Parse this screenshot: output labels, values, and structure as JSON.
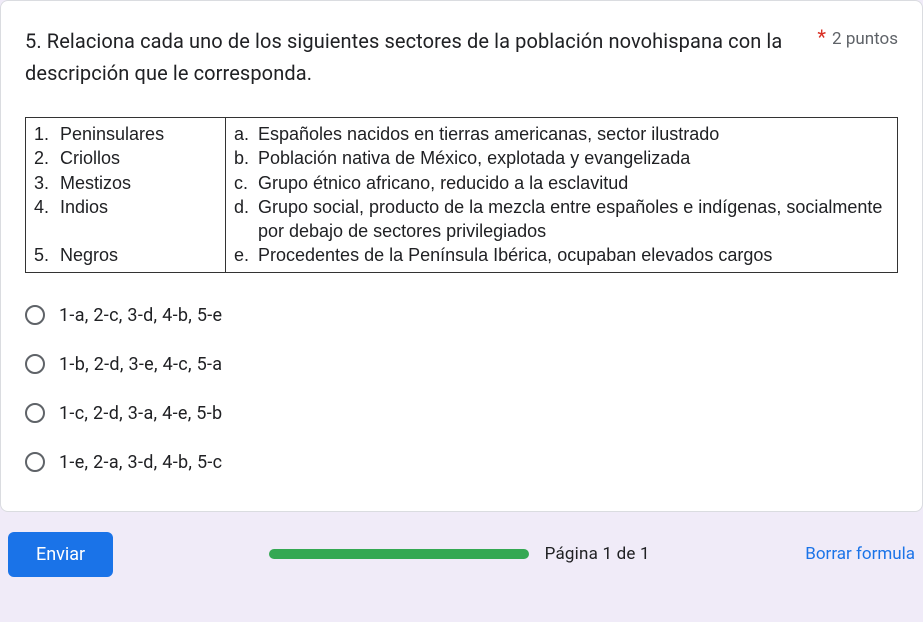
{
  "question": {
    "text": "5. Relaciona cada uno de los siguientes sectores de la población novohispana con la descripción que le corresponda.",
    "required_mark": "*",
    "points_label": "2 puntos"
  },
  "match_table": {
    "left": [
      {
        "n": "1.",
        "t": "Peninsulares"
      },
      {
        "n": "2.",
        "t": "Criollos"
      },
      {
        "n": "3.",
        "t": "Mestizos"
      },
      {
        "n": "4.",
        "t": "Indios"
      },
      {
        "n": "5.",
        "t": "Negros"
      }
    ],
    "right": [
      {
        "l": "a.",
        "t": "Españoles nacidos en tierras americanas, sector ilustrado"
      },
      {
        "l": "b.",
        "t": "Población nativa de México, explotada y evangelizada"
      },
      {
        "l": "c.",
        "t": "Grupo étnico africano, reducido a la esclavitud"
      },
      {
        "l": "d.",
        "t": "Grupo social, producto de la mezcla entre españoles e indígenas, socialmente por debajo de sectores privilegiados"
      },
      {
        "l": "e.",
        "t": "Procedentes de la Península Ibérica, ocupaban elevados cargos"
      }
    ]
  },
  "options": [
    "1-a, 2-c, 3-d, 4-b, 5-e",
    "1-b, 2-d, 3-e, 4-c, 5-a",
    "1-c, 2-d, 3-a, 4-e, 5-b",
    "1-e, 2-a, 3-d, 4-b, 5-c"
  ],
  "footer": {
    "submit": "Enviar",
    "page": "Página 1 de 1",
    "clear": "Borrar formula"
  },
  "colors": {
    "background": "#f0ebf8",
    "card_bg": "#ffffff",
    "border": "#dadce0",
    "text": "#202124",
    "muted": "#5f6368",
    "required": "#d93025",
    "primary": "#1a73e8",
    "progress": "#34a853",
    "table_border": "#333333"
  }
}
